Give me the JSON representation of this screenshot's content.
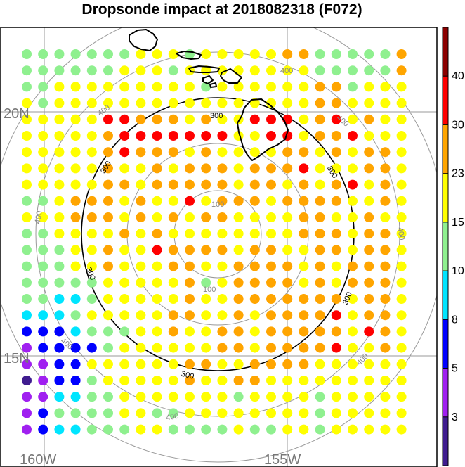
{
  "title": "Dropsonde impact at 2018082318 (F072)",
  "chart_data": {
    "type": "scatter",
    "title": "Dropsonde impact at 2018082318 (F072)",
    "lat_labels": [
      "20N",
      "15N"
    ],
    "lon_labels": [
      "160W",
      "155W"
    ],
    "range_ring_labels": [
      "100",
      "300",
      "400"
    ],
    "colorbar": {
      "tick_labels": [
        "3",
        "5",
        "8",
        "10",
        "15",
        "23",
        "30",
        "40"
      ],
      "bin_colors": [
        "#3f1c8f",
        "#a020f0",
        "#0000ff",
        "#00e5ff",
        "#8ff08f",
        "#ffff00",
        "#ffa500",
        "#ff0000",
        "#8b0000"
      ]
    },
    "grid": {
      "rows": 24,
      "cols": 24,
      "levels_legend": {
        "0": "<3",
        "1": "3-5",
        "2": "5-8",
        "3": "8-10",
        "4": "10-15",
        "5": "15-23",
        "6": "23-30",
        "7": "30-40",
        "8": ">40"
      },
      "levels": [
        "444444455545555566444446",
        "444444555455555555444446",
        "445555555554555555664555",
        "545555555555555555665555",
        "555557766656557775675655",
        "555556777777755775667555",
        "555556766656555566565665",
        "555556556566656667555665",
        "555556656666656656567565",
        "445666565575666566665565",
        "555666565656655556655655",
        "445555656555555556665665",
        "444556557666656655665665",
        "444556555665566665656665",
        "444445555564566665656665",
        "443345555565566666665665",
        "333455555665565666675665",
        "222344455655665666665765",
        "122224555555665666675565",
        "112255555566556666555555",
        "012245555565566555555555",
        "113344555555545555455555",
        "124444554455555555455555",
        "123344455444454455455555"
      ]
    }
  }
}
